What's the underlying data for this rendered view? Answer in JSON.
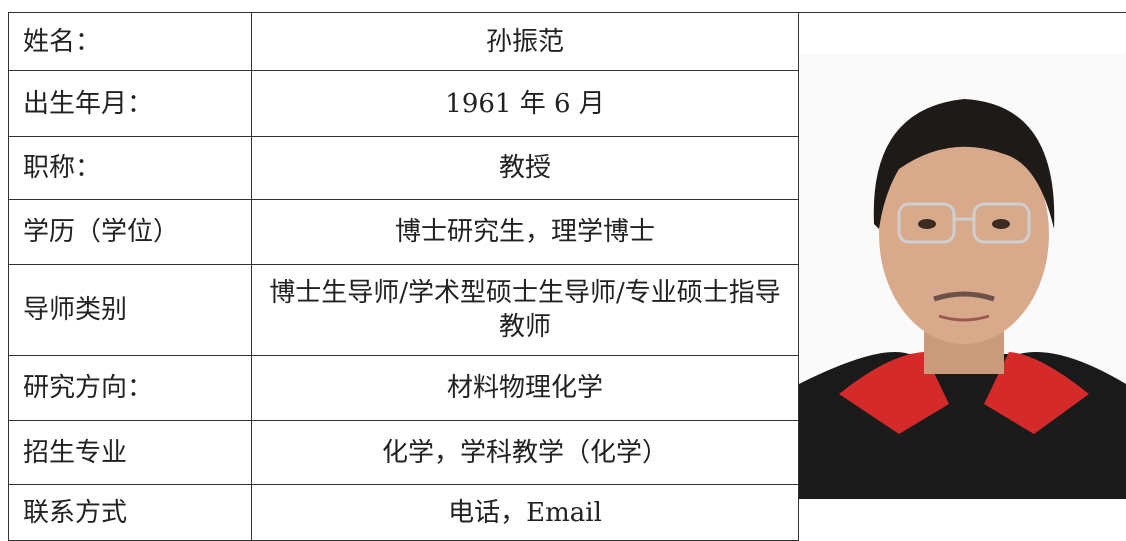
{
  "table": {
    "rows": [
      [
        "姓名：",
        "孙振范"
      ],
      [
        "出生年月：",
        "1961 年 6 月"
      ],
      [
        "职称：",
        "教授"
      ],
      [
        "学历（学位）",
        "博士研究生，理学博士"
      ],
      [
        "导师类别",
        "博士生导师/学术型硕士生导师/专业硕士指导教师"
      ],
      [
        "研究方向：",
        "材料物理化学"
      ],
      [
        "招生专业",
        "化学，学科教学（化学）"
      ],
      [
        "联系方式",
        "电话，Email"
      ]
    ]
  }
}
